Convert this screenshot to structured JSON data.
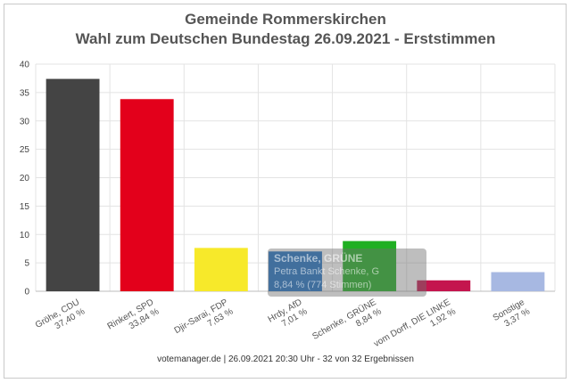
{
  "chart_data": {
    "type": "bar",
    "title": "Gemeinde Rommerskirchen",
    "subtitle": "Wahl zum Deutschen Bundestag 26.09.2021  - Erststimmen",
    "categories": [
      "Gröhe, CDU",
      "Rinkert, SPD",
      "Djir-Sarai, FDP",
      "Hrdy, AfD",
      "Schenke, GRÜNE",
      "vom Dorff, DIE LINKE",
      "Sonstige"
    ],
    "percent_labels": [
      "37,40 %",
      "33,84 %",
      "7,63 %",
      "7,01 %",
      "8,84 %",
      "1,92 %",
      "3,37 %"
    ],
    "values": [
      37.4,
      33.84,
      7.63,
      7.01,
      8.84,
      1.92,
      3.37
    ],
    "colors": [
      "#444444",
      "#e3001b",
      "#f7e92a",
      "#1d6fc4",
      "#1faf22",
      "#c4154e",
      "#a7b8e2"
    ],
    "ylim": [
      0,
      40
    ],
    "yticks": [
      0,
      5,
      10,
      15,
      20,
      25,
      30,
      35,
      40
    ],
    "grid": true,
    "xlabel": "",
    "ylabel": ""
  },
  "tooltip": {
    "header": "Schenke, GRÜNE",
    "line1": "Petra Bankt Schenke, G",
    "line2": "8,84 % (774 Stimmen)"
  },
  "footer": "votemanager.de | 26.09.2021 20:30 Uhr - 32 von 32 Ergebnissen"
}
